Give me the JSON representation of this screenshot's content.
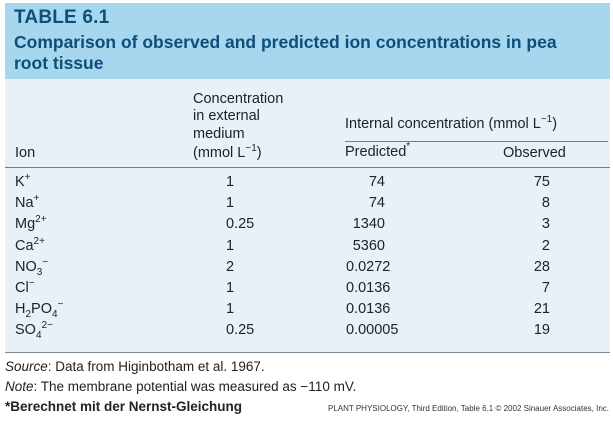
{
  "header": {
    "table_label": "TABLE 6.1",
    "title": "Comparison of observed and predicted ion concentrations in pea root tissue"
  },
  "columns": {
    "ion": "Ion",
    "external_line1": "Concentration",
    "external_line2": "in external",
    "external_line3": "medium",
    "external_line4": "(mmol L",
    "external_line4_sup": "−1",
    "external_line4_end": ")",
    "internal_group": "Internal concentration (mmol L",
    "internal_group_sup": "−1",
    "internal_group_end": ")",
    "predicted": "Predicted",
    "predicted_star": "*",
    "observed": "Observed"
  },
  "rows": [
    {
      "ion_base": "K",
      "ion_sup": "+",
      "ion_sub": "",
      "ion_sup2": "",
      "external": "1",
      "predicted": "74",
      "observed": "75"
    },
    {
      "ion_base": "Na",
      "ion_sup": "+",
      "ion_sub": "",
      "ion_sup2": "",
      "external": "1",
      "predicted": "74",
      "observed": "8"
    },
    {
      "ion_base": "Mg",
      "ion_sup": "2+",
      "ion_sub": "",
      "ion_sup2": "",
      "external": "0.25",
      "predicted": "1340",
      "observed": "3"
    },
    {
      "ion_base": "Ca",
      "ion_sup": "2+",
      "ion_sub": "",
      "ion_sup2": "",
      "external": "1",
      "predicted": "5360",
      "observed": "2"
    },
    {
      "ion_base": "NO",
      "ion_sub": "3",
      "ion_sup": "",
      "ion_sup2": "−",
      "external": "2",
      "predicted": "0.0272",
      "observed": "28"
    },
    {
      "ion_base": "Cl",
      "ion_sup": "−",
      "ion_sub": "",
      "ion_sup2": "",
      "external": "1",
      "predicted": "0.0136",
      "observed": "7"
    },
    {
      "ion_base": "H",
      "ion_sub": "2",
      "ion_mid": "PO",
      "ion_sub2": "4",
      "ion_sup2": "−",
      "ion_sup": "",
      "external": "1",
      "predicted": "0.0136",
      "observed": "21"
    },
    {
      "ion_base": "SO",
      "ion_sub": "4",
      "ion_sup": "",
      "ion_sup2": "2−",
      "external": "0.25",
      "predicted": "0.00005",
      "observed": "19"
    }
  ],
  "footer": {
    "source_label": "Source",
    "source_text": ": Data from Higinbotham et al. 1967.",
    "note_label": "Note",
    "note_text": ": The membrane potential was measured as −110 mV.",
    "nernst": "*Berechnet mit der Nernst-Gleichung",
    "credit": "PLANT PHYSIOLOGY, Third Edition, Table 6.1  © 2002 Sinauer Associates, Inc."
  }
}
